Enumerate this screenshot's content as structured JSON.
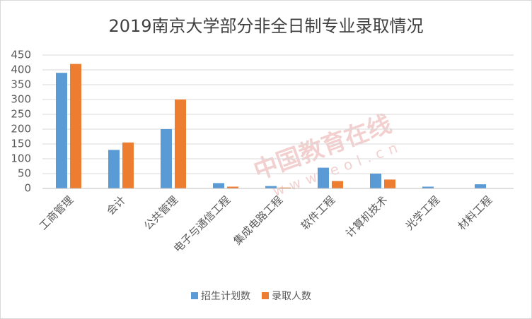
{
  "chart_data": {
    "type": "bar",
    "title": "2019南京大学部分非全日制专业录取情况",
    "watermark": "中国教育在线",
    "watermark_url": "www.eol.cn",
    "categories": [
      "工商管理",
      "会计",
      "公共管理",
      "电子与通信工程",
      "集成电路工程",
      "软件工程",
      "计算机技术",
      "光学工程",
      "材料工程"
    ],
    "series": [
      {
        "name": "招生计划数",
        "color": "#5b9bd5",
        "values": [
          390,
          130,
          200,
          18,
          8,
          70,
          50,
          6,
          14
        ]
      },
      {
        "name": "录取人数",
        "color": "#ed7d31",
        "values": [
          420,
          155,
          300,
          6,
          3,
          25,
          30,
          0,
          0
        ]
      }
    ],
    "ylim": [
      0,
      450
    ],
    "yticks": [
      0,
      50,
      100,
      150,
      200,
      250,
      300,
      350,
      400,
      450
    ],
    "grid": true,
    "legend": "bottom"
  }
}
